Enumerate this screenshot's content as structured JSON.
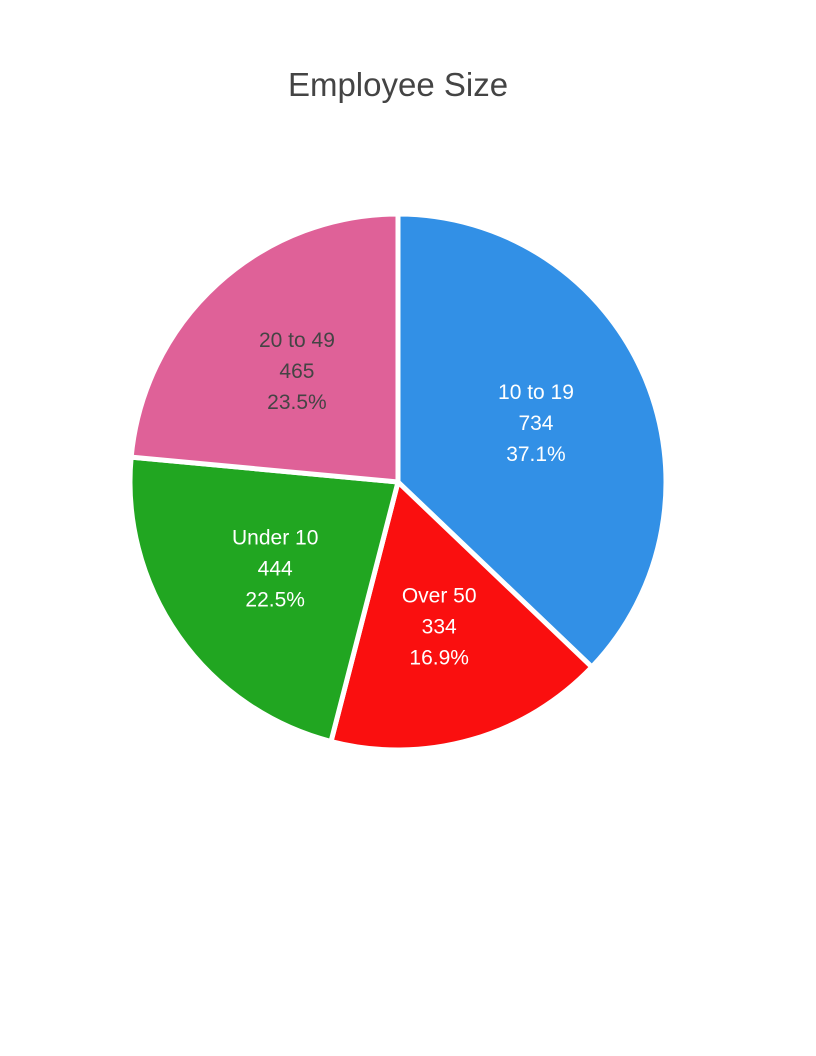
{
  "chart_data": {
    "type": "pie",
    "title": "Employee Size",
    "slices": [
      {
        "label": "10 to 19",
        "value": 734,
        "percent": "37.1%",
        "color": "#3290e6",
        "text_color": "#ffffff"
      },
      {
        "label": "Over 50",
        "value": 334,
        "percent": "16.9%",
        "color": "#fa0f0f",
        "text_color": "#ffffff"
      },
      {
        "label": "Under 10",
        "value": 444,
        "percent": "22.5%",
        "color": "#21a621",
        "text_color": "#ffffff"
      },
      {
        "label": "20 to 49",
        "value": 465,
        "percent": "23.5%",
        "color": "#df6198",
        "text_color": "#444444"
      }
    ]
  }
}
